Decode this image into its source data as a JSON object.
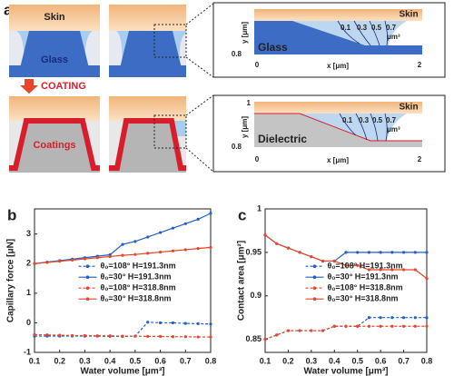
{
  "diagram": {
    "panel_label": "a",
    "top": {
      "skin": "Skin",
      "material": "Glass"
    },
    "process": "COATING",
    "bottom": {
      "coating": "Coatings"
    },
    "zoom_glass": {
      "skin": "Skin",
      "material": "Glass",
      "ylabel": "y [μm]",
      "xlabel": "x [μm]",
      "xticks": [
        "0",
        "2"
      ],
      "yticks": [
        "0.8"
      ],
      "volumes": [
        "0.1",
        "0.3",
        "0.5",
        "0.7"
      ],
      "unit": "μm³"
    },
    "zoom_dielectric": {
      "skin": "Skin",
      "material": "Dielectric",
      "ylabel": "y [μm]",
      "xlabel": "x [μm]",
      "xticks": [
        "0",
        "2"
      ],
      "yticks": [
        "1",
        "0.8"
      ],
      "volumes": [
        "0.1",
        "0.3",
        "0.5",
        "0.7"
      ],
      "unit": "μm³"
    }
  },
  "chart_data": [
    {
      "type": "line",
      "panel_label": "b",
      "xlabel": "Water volume [μm³]",
      "ylabel": "Capillary force [μN]",
      "x": [
        0.1,
        0.15,
        0.2,
        0.25,
        0.3,
        0.35,
        0.4,
        0.45,
        0.5,
        0.55,
        0.6,
        0.65,
        0.7,
        0.75,
        0.8
      ],
      "xlim": [
        0.1,
        0.8
      ],
      "xticks": [
        0.1,
        0.2,
        0.3,
        0.4,
        0.5,
        0.6,
        0.7,
        0.8
      ],
      "ylim": [
        -1,
        3.85
      ],
      "yticks": [
        -1,
        0,
        1,
        2,
        3
      ],
      "legend": "center",
      "series": [
        {
          "name": "θ₀=108° H=191.3nm",
          "color": "#1f5fc4",
          "style": "dashed",
          "values": [
            -0.45,
            -0.45,
            -0.45,
            -0.45,
            -0.45,
            -0.45,
            -0.46,
            -0.46,
            -0.45,
            0.02,
            0.0,
            0.0,
            -0.02,
            -0.03,
            -0.04
          ]
        },
        {
          "name": "θ₀=30° H=191.3nm",
          "color": "#1f5fc4",
          "style": "solid",
          "values": [
            2.0,
            2.05,
            2.1,
            2.15,
            2.2,
            2.25,
            2.3,
            2.65,
            2.75,
            2.9,
            3.05,
            3.2,
            3.35,
            3.5,
            3.7
          ]
        },
        {
          "name": "θ₀=108° H=318.8nm",
          "color": "#e8452a",
          "style": "dashed",
          "values": [
            -0.4,
            -0.41,
            -0.42,
            -0.43,
            -0.43,
            -0.44,
            -0.44,
            -0.45,
            -0.45,
            -0.46,
            -0.46,
            -0.47,
            -0.47,
            -0.48,
            -0.48
          ]
        },
        {
          "name": "θ₀=30° H=318.8nm",
          "color": "#e8452a",
          "style": "solid",
          "values": [
            2.0,
            2.04,
            2.08,
            2.12,
            2.16,
            2.2,
            2.24,
            2.28,
            2.31,
            2.35,
            2.39,
            2.43,
            2.47,
            2.51,
            2.55
          ]
        }
      ]
    },
    {
      "type": "line",
      "panel_label": "c",
      "xlabel": "Water volume [μm³]",
      "ylabel": "Contact area [μm²]",
      "x": [
        0.1,
        0.15,
        0.2,
        0.25,
        0.3,
        0.35,
        0.4,
        0.45,
        0.5,
        0.55,
        0.6,
        0.65,
        0.7,
        0.75,
        0.8
      ],
      "xlim": [
        0.1,
        0.8
      ],
      "xticks": [
        0.1,
        0.2,
        0.3,
        0.4,
        0.5,
        0.6,
        0.7,
        0.8
      ],
      "ylim": [
        0.835,
        1.0
      ],
      "yticks": [
        0.85,
        0.9,
        0.95,
        1
      ],
      "legend": "center",
      "series": [
        {
          "name": "θ₀=108° H=191.3nm",
          "color": "#1f5fc4",
          "style": "dashed",
          "values": [
            0.85,
            0.855,
            0.86,
            0.86,
            0.86,
            0.86,
            0.865,
            0.865,
            0.865,
            0.875,
            0.875,
            0.875,
            0.875,
            0.875,
            0.875
          ]
        },
        {
          "name": "θ₀=30° H=191.3nm",
          "color": "#1f5fc4",
          "style": "solid",
          "values": [
            0.97,
            0.96,
            0.955,
            0.95,
            0.945,
            0.94,
            0.94,
            0.95,
            0.95,
            0.95,
            0.95,
            0.95,
            0.95,
            0.95,
            0.95
          ]
        },
        {
          "name": "θ₀=108° H=318.8nm",
          "color": "#e8452a",
          "style": "dashed",
          "values": [
            0.85,
            0.855,
            0.86,
            0.86,
            0.86,
            0.86,
            0.865,
            0.865,
            0.865,
            0.865,
            0.865,
            0.865,
            0.865,
            0.865,
            0.865
          ]
        },
        {
          "name": "θ₀=30° H=318.8nm",
          "color": "#e8452a",
          "style": "solid",
          "values": [
            0.97,
            0.96,
            0.955,
            0.95,
            0.945,
            0.94,
            0.94,
            0.935,
            0.935,
            0.93,
            0.93,
            0.93,
            0.93,
            0.93,
            0.92
          ]
        }
      ]
    }
  ]
}
